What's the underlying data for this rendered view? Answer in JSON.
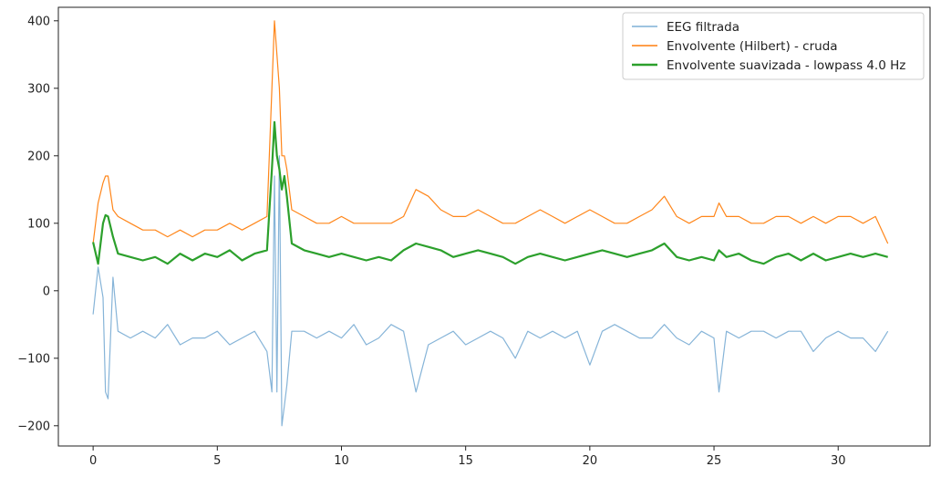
{
  "chart_data": {
    "type": "line",
    "title": "",
    "xlabel": "",
    "ylabel": "",
    "xlim": [
      -1.4,
      33.7
    ],
    "ylim": [
      -230,
      420
    ],
    "x_ticks": [
      0,
      5,
      10,
      15,
      20,
      25,
      30
    ],
    "y_ticks": [
      -200,
      -100,
      0,
      100,
      200,
      300,
      400
    ],
    "x_tick_labels": [
      "0",
      "5",
      "10",
      "15",
      "20",
      "25",
      "30"
    ],
    "y_tick_labels": [
      "−200",
      "−100",
      "0",
      "100",
      "200",
      "300",
      "400"
    ],
    "grid": false,
    "legend_position": "top-right",
    "series": [
      {
        "name": "EEG filtrada",
        "color": "#7fb0d6",
        "style": "thin",
        "x": [
          0,
          0.2,
          0.4,
          0.5,
          0.6,
          0.8,
          1.0,
          1.5,
          2.0,
          2.5,
          3.0,
          3.5,
          4.0,
          4.5,
          5.0,
          5.5,
          6.0,
          6.5,
          7.0,
          7.2,
          7.3,
          7.4,
          7.5,
          7.6,
          7.7,
          7.8,
          8.0,
          8.5,
          9.0,
          9.5,
          10.0,
          10.5,
          11.0,
          11.5,
          12.0,
          12.5,
          13.0,
          13.5,
          14.0,
          14.5,
          15.0,
          15.5,
          16.0,
          16.5,
          17.0,
          17.5,
          18.0,
          18.5,
          19.0,
          19.5,
          20.0,
          20.5,
          21.0,
          21.5,
          22.0,
          22.5,
          23.0,
          23.5,
          24.0,
          24.5,
          25.0,
          25.2,
          25.5,
          26.0,
          26.5,
          27.0,
          27.5,
          28.0,
          28.5,
          29.0,
          29.5,
          30.0,
          30.5,
          31.0,
          31.5,
          32.0
        ],
        "values": [
          -35,
          35,
          -10,
          -150,
          -160,
          20,
          -60,
          -70,
          -60,
          -70,
          -50,
          -80,
          -70,
          -70,
          -60,
          -80,
          -70,
          -60,
          -90,
          -150,
          170,
          -150,
          200,
          -200,
          -170,
          -140,
          -60,
          -60,
          -70,
          -60,
          -70,
          -50,
          -80,
          -70,
          -50,
          -60,
          -150,
          -80,
          -70,
          -60,
          -80,
          -70,
          -60,
          -70,
          -100,
          -60,
          -70,
          -60,
          -70,
          -60,
          -110,
          -60,
          -50,
          -60,
          -70,
          -70,
          -50,
          -70,
          -80,
          -60,
          -70,
          -150,
          -60,
          -70,
          -60,
          -60,
          -70,
          -60,
          -60,
          -90,
          -70,
          -60,
          -70,
          -70,
          -90,
          -60
        ]
      },
      {
        "name": "Envolvente (Hilbert) - cruda",
        "color": "#ff7f0e",
        "style": "thin",
        "x": [
          0,
          0.2,
          0.4,
          0.5,
          0.6,
          0.8,
          1.0,
          1.5,
          2.0,
          2.5,
          3.0,
          3.5,
          4.0,
          4.5,
          5.0,
          5.5,
          6.0,
          6.5,
          7.0,
          7.2,
          7.3,
          7.4,
          7.5,
          7.6,
          7.7,
          7.8,
          8.0,
          8.5,
          9.0,
          9.5,
          10.0,
          10.5,
          11.0,
          11.5,
          12.0,
          12.5,
          13.0,
          13.5,
          14.0,
          14.5,
          15.0,
          15.5,
          16.0,
          16.5,
          17.0,
          17.5,
          18.0,
          18.5,
          19.0,
          19.5,
          20.0,
          20.5,
          21.0,
          21.5,
          22.0,
          22.5,
          23.0,
          23.5,
          24.0,
          24.5,
          25.0,
          25.2,
          25.5,
          26.0,
          26.5,
          27.0,
          27.5,
          28.0,
          28.5,
          29.0,
          29.5,
          30.0,
          30.5,
          31.0,
          31.5,
          32.0
        ],
        "values": [
          70,
          130,
          160,
          170,
          170,
          120,
          110,
          100,
          90,
          90,
          80,
          90,
          80,
          90,
          90,
          100,
          90,
          100,
          110,
          300,
          400,
          350,
          300,
          200,
          200,
          180,
          120,
          110,
          100,
          100,
          110,
          100,
          100,
          100,
          100,
          110,
          150,
          140,
          120,
          110,
          110,
          120,
          110,
          100,
          100,
          110,
          120,
          110,
          100,
          110,
          120,
          110,
          100,
          100,
          110,
          120,
          140,
          110,
          100,
          110,
          110,
          130,
          110,
          110,
          100,
          100,
          110,
          110,
          100,
          110,
          100,
          110,
          110,
          100,
          110,
          70
        ]
      },
      {
        "name": "Envolvente suavizada - lowpass 4.0 Hz",
        "color": "#2ca02c",
        "style": "thick",
        "x": [
          0,
          0.2,
          0.4,
          0.5,
          0.6,
          0.8,
          1.0,
          1.5,
          2.0,
          2.5,
          3.0,
          3.5,
          4.0,
          4.5,
          5.0,
          5.5,
          6.0,
          6.5,
          7.0,
          7.2,
          7.3,
          7.4,
          7.5,
          7.6,
          7.7,
          7.8,
          8.0,
          8.5,
          9.0,
          9.5,
          10.0,
          10.5,
          11.0,
          11.5,
          12.0,
          12.5,
          13.0,
          13.5,
          14.0,
          14.5,
          15.0,
          15.5,
          16.0,
          16.5,
          17.0,
          17.5,
          18.0,
          18.5,
          19.0,
          19.5,
          20.0,
          20.5,
          21.0,
          21.5,
          22.0,
          22.5,
          23.0,
          23.5,
          24.0,
          24.5,
          25.0,
          25.2,
          25.5,
          26.0,
          26.5,
          27.0,
          27.5,
          28.0,
          28.5,
          29.0,
          29.5,
          30.0,
          30.5,
          31.0,
          31.5,
          32.0
        ],
        "values": [
          72,
          40,
          100,
          112,
          110,
          80,
          55,
          50,
          45,
          50,
          40,
          55,
          45,
          55,
          50,
          60,
          45,
          55,
          60,
          180,
          250,
          200,
          180,
          150,
          170,
          140,
          70,
          60,
          55,
          50,
          55,
          50,
          45,
          50,
          45,
          60,
          70,
          65,
          60,
          50,
          55,
          60,
          55,
          50,
          40,
          50,
          55,
          50,
          45,
          50,
          55,
          60,
          55,
          50,
          55,
          60,
          70,
          50,
          45,
          50,
          45,
          60,
          50,
          55,
          45,
          40,
          50,
          55,
          45,
          55,
          45,
          50,
          55,
          50,
          55,
          50
        ]
      }
    ]
  }
}
